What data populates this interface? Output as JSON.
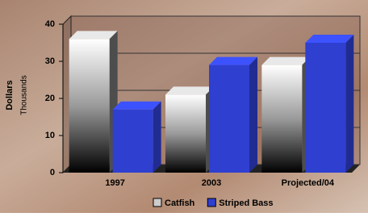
{
  "chart_data": {
    "type": "bar3d",
    "y_label": "Dollars",
    "y_sublabel": "Thousands",
    "categories": [
      "1997",
      "2003",
      "Projected/04"
    ],
    "series": [
      {
        "name": "Catfish",
        "color": "#9a9a9a",
        "values": [
          36,
          21,
          29
        ]
      },
      {
        "name": "Striped Bass",
        "color": "#2f3fd0",
        "values": [
          17,
          29,
          35
        ]
      }
    ],
    "ylim": [
      0,
      40
    ],
    "yticks": [
      0,
      10,
      20,
      30,
      40
    ],
    "grid": true
  }
}
